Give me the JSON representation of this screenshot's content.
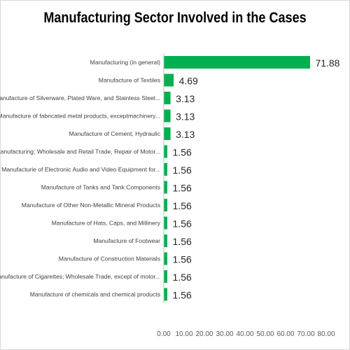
{
  "chart_data": {
    "type": "bar",
    "orientation": "horizontal",
    "title": "Manufacturing Sector Involved in the Cases",
    "categories": [
      "Manufacturing (in general)",
      "Manufacture of Textiles",
      "Manufacture of Silverware, Plated Ware, and Stainless Steel...",
      "Manufacture of fabricated metal products, exceptmachinery...",
      "Manufacture of Cement, Hydraulic",
      "Manufacturing; Wholesale and Retail Trade, Repair of Motor...",
      "Manufacturie of Electronic Audio and Video Equipment for...",
      "Manufacture of Tanks and Tank Components",
      "Manufacture of Other Non-Metallic Mineral Products",
      "Manufacture of Hats, Caps, and Millinery",
      "Manufacture of Footwear",
      "Manufacture of Construction Materials",
      "Manufacture of Cigarettes; Wholesale Trade, except of motor...",
      "Manufacture of chemicals and chemical products"
    ],
    "values": [
      71.88,
      4.69,
      3.13,
      3.13,
      3.13,
      1.56,
      1.56,
      1.56,
      1.56,
      1.56,
      1.56,
      1.56,
      1.56,
      1.56
    ],
    "value_labels": [
      "71.88",
      "4.69",
      "3.13",
      "3.13",
      "3.13",
      "1.56",
      "1.56",
      "1.56",
      "1.56",
      "1.56",
      "1.56",
      "1.56",
      "1.56",
      "1.56"
    ],
    "xlim": [
      0,
      80
    ],
    "x_ticks": [
      "0.00",
      "10.00",
      "20.00",
      "30.00",
      "40.00",
      "50.00",
      "60.00",
      "70.00",
      "80.00"
    ],
    "xlabel": "",
    "ylabel": "",
    "grid": false,
    "legend": "none",
    "bar_color": "#00b050",
    "axis_color": "#bfbfbf"
  }
}
